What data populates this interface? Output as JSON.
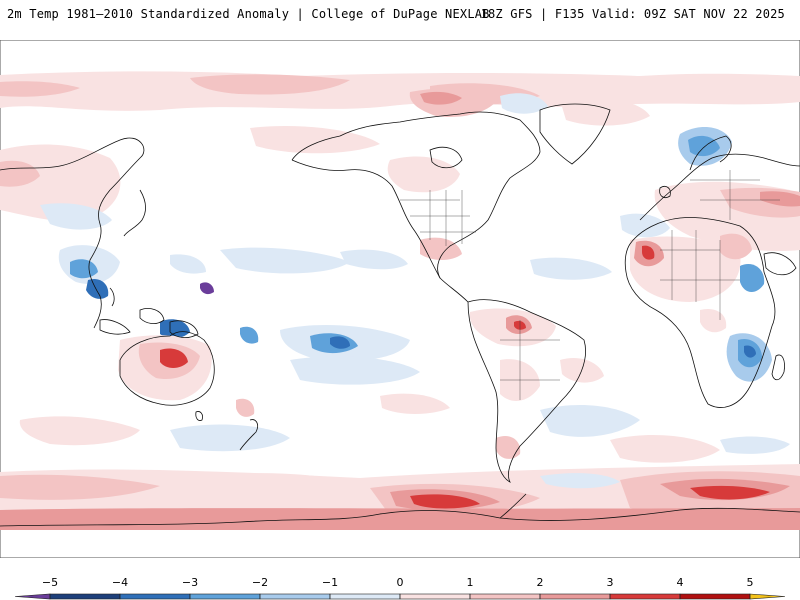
{
  "header": {
    "title": "2m Temp 1981–2010 Standardized Anomaly | College of DuPage NEXLAB",
    "valid": "18Z GFS | F135 Valid: 09Z SAT NOV 22 2025"
  },
  "map": {
    "projection": "equirectangular",
    "ocean_color": "#ffffff",
    "coastline_color": "#111111"
  },
  "colorbar": {
    "tick_labels": [
      "−5",
      "−4",
      "−3",
      "−2",
      "−1",
      "0",
      "1",
      "2",
      "3",
      "4",
      "5"
    ],
    "ticks": [
      -5,
      -4,
      -3,
      -2,
      -1,
      0,
      1,
      2,
      3,
      4,
      5
    ],
    "range": [
      -5.5,
      5.5
    ],
    "bins": [
      {
        "from": -5.5,
        "to": -5,
        "color": "#6a3d9a"
      },
      {
        "from": -5,
        "to": -4,
        "color": "#1d3f7a"
      },
      {
        "from": -4,
        "to": -3,
        "color": "#2f6fb8"
      },
      {
        "from": -3,
        "to": -2,
        "color": "#5fa2da"
      },
      {
        "from": -2,
        "to": -1,
        "color": "#a8cbec"
      },
      {
        "from": -1,
        "to": 0,
        "color": "#dde9f6"
      },
      {
        "from": 0,
        "to": 1,
        "color": "#f9e2e2"
      },
      {
        "from": 1,
        "to": 2,
        "color": "#f3c4c4"
      },
      {
        "from": 2,
        "to": 3,
        "color": "#e89a9a"
      },
      {
        "from": 3,
        "to": 4,
        "color": "#d73a3a"
      },
      {
        "from": 4,
        "to": 5,
        "color": "#b01010"
      },
      {
        "from": 5,
        "to": 5.5,
        "color": "#f3c21a"
      }
    ]
  },
  "colors": {
    "warm_light": "#f9e2e2",
    "warm_mid": "#f3c4c4",
    "warm_strong": "#e89a9a",
    "warm_hot": "#d73a3a",
    "cold_light": "#dde9f6",
    "cold_mid": "#a8cbec",
    "cold_strong": "#5fa2da",
    "cold_deep": "#2f6fb8"
  }
}
